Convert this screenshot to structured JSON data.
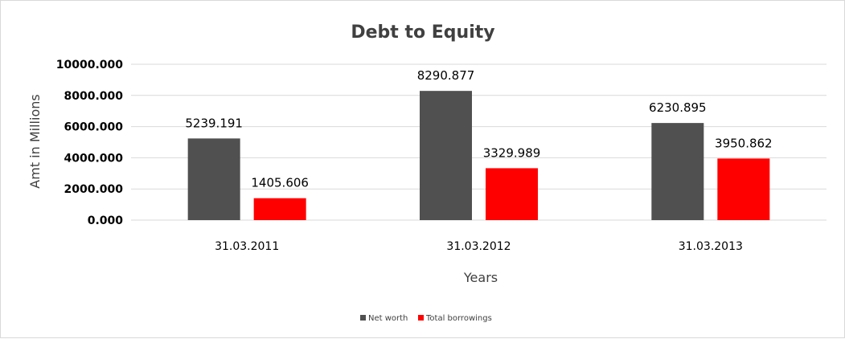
{
  "chart_data": {
    "type": "bar",
    "title": "Debt to Equity",
    "xlabel": "Years",
    "ylabel": "Amt in Millions",
    "categories": [
      "31.03.2011",
      "31.03.2012",
      "31.03.2013"
    ],
    "series": [
      {
        "name": "Net worth",
        "values": [
          5239.191,
          8290.877,
          6230.895
        ],
        "color": "#505050"
      },
      {
        "name": "Total borrowings",
        "values": [
          1405.606,
          3329.989,
          3950.862
        ],
        "color": "#ff0000"
      }
    ],
    "ylim": [
      0,
      10000
    ],
    "yticks": [
      "0.000",
      "2000.000",
      "4000.000",
      "6000.000",
      "8000.000",
      "10000.000"
    ],
    "grid": true,
    "legend": "bottom"
  }
}
